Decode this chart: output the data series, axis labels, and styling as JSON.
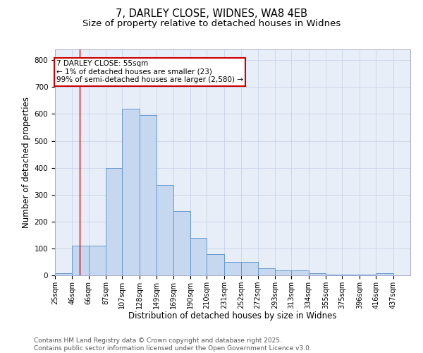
{
  "title_line1": "7, DARLEY CLOSE, WIDNES, WA8 4EB",
  "title_line2": "Size of property relative to detached houses in Widnes",
  "bar_left_edges": [
    25,
    46,
    66,
    87,
    107,
    128,
    149,
    169,
    190,
    210,
    231,
    252,
    272,
    293,
    313,
    334,
    355,
    375,
    396,
    416
  ],
  "bar_heights": [
    7,
    110,
    110,
    400,
    620,
    597,
    335,
    238,
    138,
    80,
    50,
    50,
    25,
    18,
    18,
    7,
    3,
    3,
    3,
    7
  ],
  "bar_color": "#c5d8f0",
  "bar_edge_color": "#6699cc",
  "bar_widths": [
    21,
    20,
    21,
    20,
    21,
    21,
    20,
    21,
    20,
    21,
    21,
    20,
    21,
    20,
    21,
    21,
    20,
    21,
    20,
    21
  ],
  "x_tick_labels": [
    "25sqm",
    "46sqm",
    "66sqm",
    "87sqm",
    "107sqm",
    "128sqm",
    "149sqm",
    "169sqm",
    "190sqm",
    "210sqm",
    "231sqm",
    "252sqm",
    "272sqm",
    "293sqm",
    "313sqm",
    "334sqm",
    "355sqm",
    "375sqm",
    "396sqm",
    "416sqm",
    "437sqm"
  ],
  "x_tick_positions": [
    25,
    46,
    66,
    87,
    107,
    128,
    149,
    169,
    190,
    210,
    231,
    252,
    272,
    293,
    313,
    334,
    355,
    375,
    396,
    416,
    437
  ],
  "xlabel": "Distribution of detached houses by size in Widnes",
  "ylabel": "Number of detached properties",
  "ylim": [
    0,
    840
  ],
  "xlim": [
    25,
    458
  ],
  "grid_color": "#c8d4e8",
  "bg_color": "#e8eef8",
  "red_line_x": 55,
  "annotation_title": "7 DARLEY CLOSE: 55sqm",
  "annotation_line1": "← 1% of detached houses are smaller (23)",
  "annotation_line2": "99% of semi-detached houses are larger (2,580) →",
  "annotation_box_color": "#ffffff",
  "annotation_box_edge": "#cc0000",
  "red_line_color": "#cc0000",
  "footer_line1": "Contains HM Land Registry data © Crown copyright and database right 2025.",
  "footer_line2": "Contains public sector information licensed under the Open Government Licence v3.0.",
  "title_fontsize": 10.5,
  "subtitle_fontsize": 9.5,
  "tick_fontsize": 7,
  "label_fontsize": 8.5,
  "footer_fontsize": 6.5,
  "annot_fontsize": 7.5
}
